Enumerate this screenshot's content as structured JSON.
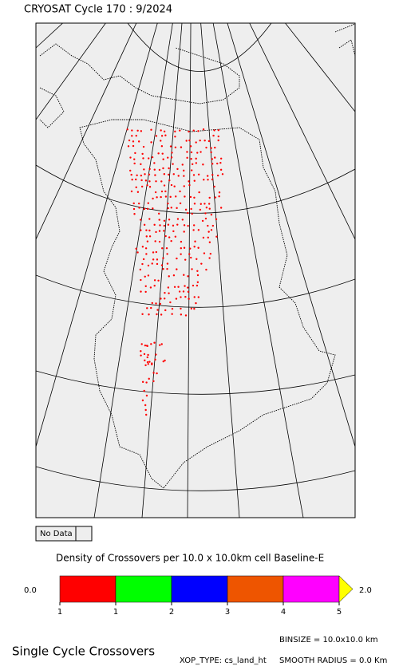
{
  "header": {
    "title": "CRYOSAT Cycle 170 : 9/2024"
  },
  "map": {
    "no_data_label": "No Data",
    "no_data_color": "#eeeeee",
    "background": "#eeeeee",
    "point_color": "#ff0000"
  },
  "colorbar": {
    "title": "Density of Crossovers per  10.0 x  10.0km cell Baseline-E",
    "min_label": "0.0",
    "max_label": "2.0",
    "colors": [
      "#ff0000",
      "#00ff00",
      "#0000ff",
      "#ee5500",
      "#ff00ff"
    ],
    "arrow_color": "#ffff00",
    "tick_labels": [
      "1",
      "1",
      "2",
      "3",
      "4",
      "5"
    ]
  },
  "footer": {
    "title": "Single Cycle Crossovers",
    "binsize": "BINSIZE = 10.0x10.0 km",
    "xop_type": "XOP_TYPE: cs_land_ht",
    "smooth_radius": "SMOOTH RADIUS =    0.0 Km"
  }
}
